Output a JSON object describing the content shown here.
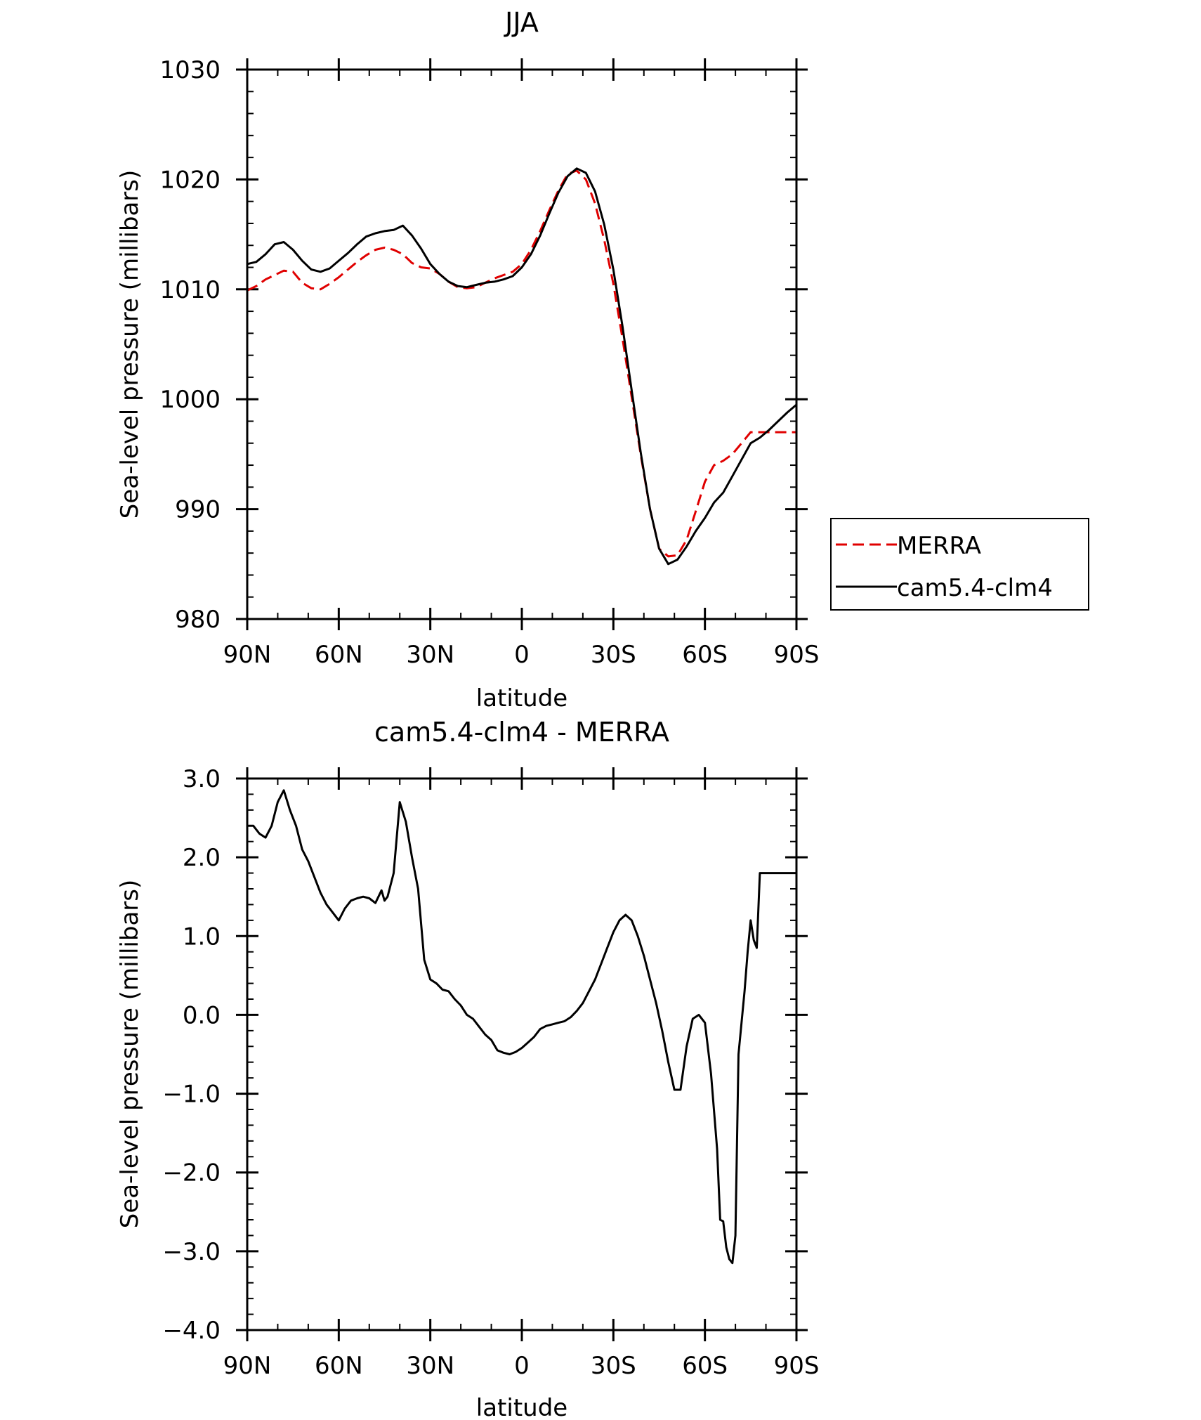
{
  "chart_data": [
    {
      "type": "line",
      "title": "JJA",
      "xlabel": "latitude",
      "ylabel": "Sea-level pressure (millibars)",
      "xlim": [
        90,
        -90
      ],
      "ylim": [
        980,
        1030
      ],
      "x_ticks": [
        90,
        60,
        30,
        0,
        -30,
        -60,
        -90
      ],
      "x_tick_labels": [
        "90N",
        "60N",
        "30N",
        "0",
        "30S",
        "60S",
        "90S"
      ],
      "y_ticks": [
        980,
        990,
        1000,
        1010,
        1020,
        1030
      ],
      "y_tick_labels": [
        "980",
        "990",
        "1000",
        "1010",
        "1020",
        "1030"
      ],
      "grid": false,
      "legend": "right",
      "series": [
        {
          "name": "MERRA",
          "color": "#e00000",
          "dash": true,
          "x": [
            90,
            87,
            84,
            81,
            78,
            75,
            72,
            69,
            66,
            63,
            60,
            57,
            54,
            51,
            48,
            45,
            42,
            39,
            36,
            33,
            30,
            27,
            24,
            21,
            18,
            15,
            12,
            9,
            6,
            3,
            0,
            -3,
            -6,
            -9,
            -12,
            -15,
            -18,
            -21,
            -24,
            -27,
            -30,
            -33,
            -36,
            -39,
            -42,
            -45,
            -48,
            -51,
            -54,
            -57,
            -60,
            -63,
            -66,
            -69,
            -72,
            -75,
            -78,
            -81,
            -84,
            -87,
            -90
          ],
          "y": [
            1009.9,
            1010.3,
            1010.9,
            1011.3,
            1011.7,
            1011.6,
            1010.6,
            1010.1,
            1010.0,
            1010.5,
            1011.1,
            1011.8,
            1012.5,
            1013.1,
            1013.6,
            1013.8,
            1013.6,
            1013.2,
            1012.4,
            1012.0,
            1011.9,
            1011.4,
            1010.7,
            1010.2,
            1010.1,
            1010.2,
            1010.6,
            1011.0,
            1011.3,
            1011.6,
            1012.3,
            1013.6,
            1015.3,
            1017.2,
            1019.0,
            1020.5,
            1020.8,
            1020.0,
            1017.8,
            1014.5,
            1010.5,
            1005.5,
            1000.2,
            994.9,
            990.0,
            986.4,
            985.7,
            985.8,
            987.2,
            989.8,
            992.5,
            994.0,
            994.4,
            995.0,
            996.0,
            997.0,
            997.0,
            997.0,
            997.0,
            997.0,
            997.0
          ]
        },
        {
          "name": "cam5.4-clm4",
          "color": "#000000",
          "dash": false,
          "x": [
            90,
            87,
            84,
            81,
            78,
            75,
            72,
            69,
            66,
            63,
            60,
            57,
            54,
            51,
            48,
            45,
            42,
            39,
            36,
            33,
            30,
            27,
            24,
            21,
            18,
            15,
            12,
            9,
            6,
            3,
            0,
            -3,
            -6,
            -9,
            -12,
            -15,
            -18,
            -21,
            -24,
            -27,
            -30,
            -33,
            -36,
            -39,
            -42,
            -45,
            -48,
            -51,
            -54,
            -57,
            -60,
            -63,
            -66,
            -69,
            -72,
            -75,
            -78,
            -81,
            -84,
            -87,
            -90
          ],
          "y": [
            1012.3,
            1012.5,
            1013.2,
            1014.1,
            1014.3,
            1013.6,
            1012.6,
            1011.8,
            1011.6,
            1011.9,
            1012.6,
            1013.3,
            1014.1,
            1014.8,
            1015.1,
            1015.3,
            1015.4,
            1015.8,
            1014.9,
            1013.7,
            1012.3,
            1011.4,
            1010.7,
            1010.3,
            1010.2,
            1010.4,
            1010.6,
            1010.7,
            1010.9,
            1011.2,
            1012.0,
            1013.2,
            1014.9,
            1016.9,
            1018.8,
            1020.3,
            1021.0,
            1020.6,
            1018.9,
            1015.9,
            1011.8,
            1006.6,
            1000.8,
            995.1,
            990.0,
            986.4,
            985.0,
            985.4,
            986.6,
            988.0,
            989.2,
            990.6,
            991.5,
            993.0,
            994.5,
            996.0,
            996.5,
            997.2,
            998.0,
            998.8,
            999.5
          ]
        }
      ]
    },
    {
      "type": "line",
      "title": "cam5.4-clm4 - MERRA",
      "xlabel": "latitude",
      "ylabel": "Sea-level pressure (millibars)",
      "xlim": [
        90,
        -90
      ],
      "ylim": [
        -4.0,
        3.0
      ],
      "x_ticks": [
        90,
        60,
        30,
        0,
        -30,
        -60,
        -90
      ],
      "x_tick_labels": [
        "90N",
        "60N",
        "30N",
        "0",
        "30S",
        "60S",
        "90S"
      ],
      "y_ticks": [
        -4.0,
        -3.0,
        -2.0,
        -1.0,
        0.0,
        1.0,
        2.0,
        3.0
      ],
      "y_tick_labels": [
        "−4.0",
        "−3.0",
        "−2.0",
        "−1.0",
        "0.0",
        "1.0",
        "2.0",
        "3.0"
      ],
      "grid": false,
      "series": [
        {
          "color": "#000000",
          "x": [
            90,
            88,
            86,
            84,
            82,
            80,
            78,
            76,
            74,
            72,
            70,
            68,
            66,
            64,
            62,
            60,
            58,
            56,
            54,
            52,
            50,
            48,
            46,
            45,
            44,
            42,
            40,
            38,
            36,
            34,
            32,
            30,
            28,
            26,
            24,
            22,
            20,
            18,
            16,
            14,
            12,
            10,
            8,
            6,
            4,
            2,
            0,
            -2,
            -4,
            -6,
            -8,
            -10,
            -12,
            -14,
            -16,
            -18,
            -20,
            -22,
            -24,
            -26,
            -28,
            -30,
            -32,
            -34,
            -36,
            -38,
            -40,
            -42,
            -44,
            -46,
            -48,
            -50,
            -52,
            -54,
            -56,
            -58,
            -60,
            -62,
            -64,
            -65,
            -66,
            -67,
            -68,
            -69,
            -70,
            -71,
            -72,
            -73,
            -74,
            -75,
            -76,
            -77,
            -78,
            -79,
            -80,
            -81,
            -82,
            -83,
            -84,
            -85,
            -86,
            -87,
            -88,
            -89,
            -90
          ],
          "y": [
            2.4,
            2.4,
            2.3,
            2.25,
            2.4,
            2.7,
            2.85,
            2.6,
            2.4,
            2.1,
            1.95,
            1.75,
            1.55,
            1.4,
            1.3,
            1.2,
            1.35,
            1.45,
            1.48,
            1.5,
            1.48,
            1.42,
            1.58,
            1.45,
            1.5,
            1.8,
            2.7,
            2.45,
            2.0,
            1.6,
            0.7,
            0.45,
            0.4,
            0.32,
            0.3,
            0.2,
            0.12,
            0.0,
            -0.05,
            -0.15,
            -0.25,
            -0.32,
            -0.45,
            -0.48,
            -0.5,
            -0.47,
            -0.42,
            -0.35,
            -0.28,
            -0.18,
            -0.14,
            -0.12,
            -0.1,
            -0.08,
            -0.03,
            0.05,
            0.15,
            0.3,
            0.45,
            0.65,
            0.85,
            1.05,
            1.2,
            1.27,
            1.2,
            1.0,
            0.75,
            0.45,
            0.15,
            -0.2,
            -0.6,
            -0.95,
            -0.95,
            -0.4,
            -0.05,
            0.0,
            -0.1,
            -0.75,
            -1.7,
            -2.6,
            -2.62,
            -2.95,
            -3.1,
            -3.15,
            -2.8,
            -0.5,
            -0.1,
            0.3,
            0.8,
            1.2,
            0.95,
            0.85,
            1.8,
            1.8,
            1.8,
            1.8,
            1.8,
            1.8,
            1.8,
            1.8,
            1.8,
            1.8,
            1.8,
            1.8,
            1.8
          ]
        }
      ]
    }
  ]
}
